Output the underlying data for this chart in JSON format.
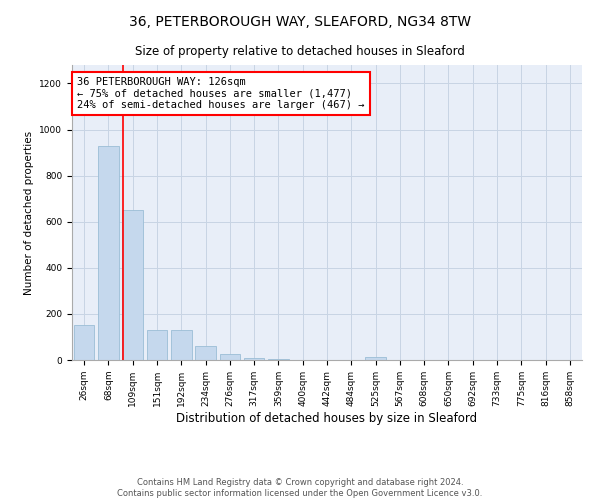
{
  "title": "36, PETERBOROUGH WAY, SLEAFORD, NG34 8TW",
  "subtitle": "Size of property relative to detached houses in Sleaford",
  "xlabel": "Distribution of detached houses by size in Sleaford",
  "ylabel": "Number of detached properties",
  "bar_color": "#c5d8ed",
  "bar_edge_color": "#9bbdd6",
  "categories": [
    "26sqm",
    "68sqm",
    "109sqm",
    "151sqm",
    "192sqm",
    "234sqm",
    "276sqm",
    "317sqm",
    "359sqm",
    "400sqm",
    "442sqm",
    "484sqm",
    "525sqm",
    "567sqm",
    "608sqm",
    "650sqm",
    "692sqm",
    "733sqm",
    "775sqm",
    "816sqm",
    "858sqm"
  ],
  "values": [
    150,
    930,
    650,
    130,
    130,
    60,
    25,
    10,
    5,
    0,
    0,
    0,
    15,
    0,
    0,
    0,
    0,
    0,
    0,
    0,
    0
  ],
  "annotation_text": "36 PETERBOROUGH WAY: 126sqm\n← 75% of detached houses are smaller (1,477)\n24% of semi-detached houses are larger (467) →",
  "annotation_box_color": "white",
  "annotation_box_edge_color": "red",
  "vline_x_index": 2,
  "vline_color": "red",
  "vline_linewidth": 1.2,
  "ylim": [
    0,
    1280
  ],
  "yticks": [
    0,
    200,
    400,
    600,
    800,
    1000,
    1200
  ],
  "grid_color": "#c8d4e4",
  "background_color": "#e8eef8",
  "footnote": "Contains HM Land Registry data © Crown copyright and database right 2024.\nContains public sector information licensed under the Open Government Licence v3.0.",
  "title_fontsize": 10,
  "subtitle_fontsize": 8.5,
  "xlabel_fontsize": 8.5,
  "ylabel_fontsize": 7.5,
  "tick_fontsize": 6.5,
  "annot_fontsize": 7.5,
  "footnote_fontsize": 6
}
